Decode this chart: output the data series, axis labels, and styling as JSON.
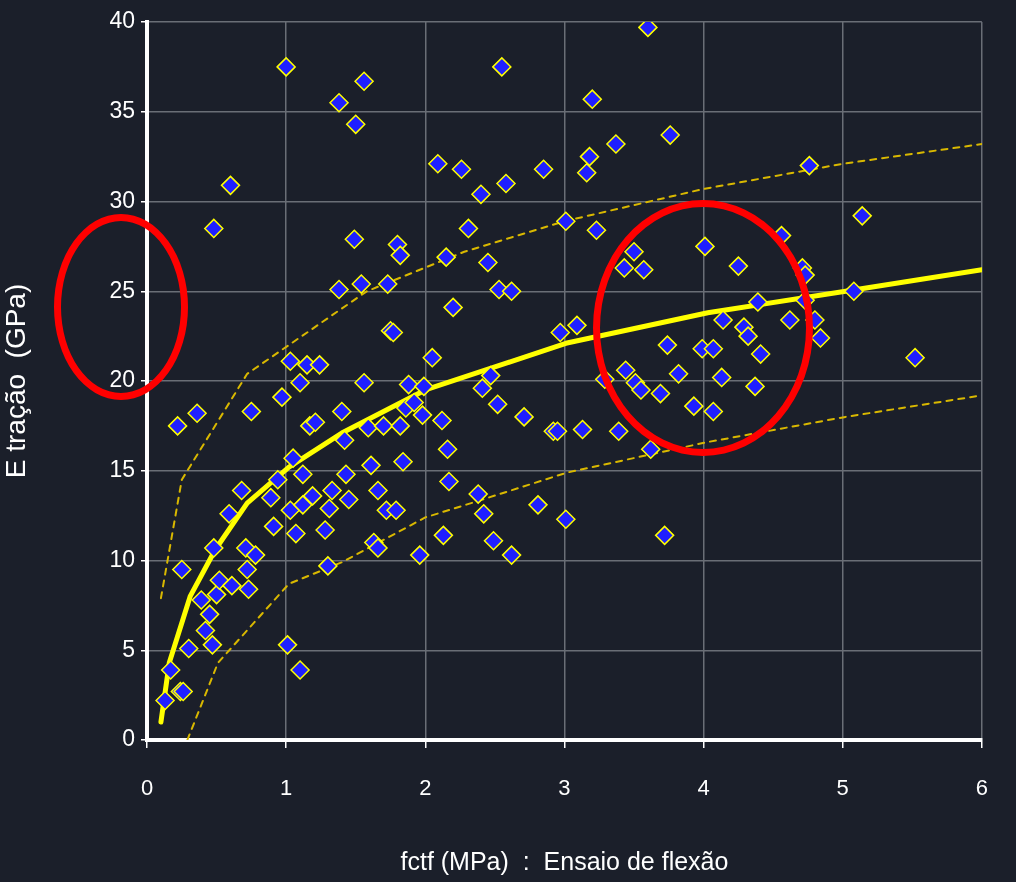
{
  "chart_data": {
    "type": "scatter",
    "xlabel": "fctf (MPa)  :  Ensaio de flexão",
    "ylabel": "E tração  (GPa)",
    "xlim": [
      0,
      6
    ],
    "ylim": [
      0,
      40
    ],
    "xticks": [
      0,
      1,
      2,
      3,
      4,
      5,
      6
    ],
    "yticks": [
      0,
      5,
      10,
      15,
      20,
      25,
      30,
      35,
      40
    ],
    "grid": true,
    "marker": "diamond",
    "series": [
      {
        "color": "#1f1fff",
        "x": [
          0.13,
          0.17,
          0.24,
          0.26,
          0.22,
          0.25,
          0.3,
          0.36,
          0.39,
          0.42,
          0.45,
          0.47,
          0.48,
          0.48,
          0.5,
          0.52,
          0.6,
          0.59,
          0.61,
          0.68,
          0.71,
          0.72,
          0.73,
          0.75,
          0.78,
          0.89,
          0.91,
          0.94,
          0.97,
          1.0,
          1.01,
          1.03,
          1.03,
          1.05,
          1.07,
          1.1,
          1.1,
          1.12,
          1.12,
          1.15,
          1.17,
          1.19,
          1.21,
          1.24,
          1.28,
          1.3,
          1.31,
          1.33,
          1.38,
          1.38,
          1.4,
          1.42,
          1.43,
          1.45,
          1.49,
          1.5,
          1.54,
          1.56,
          1.56,
          1.59,
          1.61,
          1.63,
          1.66,
          1.66,
          1.7,
          1.72,
          1.73,
          1.75,
          1.77,
          1.79,
          1.8,
          1.82,
          1.82,
          1.84,
          1.86,
          1.88,
          1.92,
          1.96,
          1.98,
          1.99,
          2.05,
          2.09,
          2.12,
          2.13,
          2.15,
          2.16,
          2.17,
          2.2,
          2.26,
          2.31,
          2.38,
          2.4,
          2.41,
          2.42,
          2.45,
          2.47,
          2.49,
          2.52,
          2.53,
          2.55,
          2.58,
          2.62,
          2.62,
          2.71,
          2.81,
          2.85,
          2.92,
          2.95,
          3.01,
          3.01,
          2.97,
          3.09,
          3.13,
          3.16,
          3.18,
          3.2,
          3.23,
          3.29,
          3.37,
          3.39,
          3.43,
          3.44,
          3.5,
          3.51,
          3.55,
          3.57,
          3.6,
          3.62,
          3.72,
          3.76,
          3.69,
          3.74,
          3.82,
          3.93,
          3.99,
          4.01,
          4.07,
          4.07,
          4.13,
          4.14,
          4.25,
          4.29,
          4.32,
          4.37,
          4.39,
          4.41,
          4.56,
          4.62,
          4.71,
          4.73,
          4.73,
          4.76,
          4.8,
          4.84,
          5.08,
          5.14,
          5.52
        ],
        "values": [
          2.2,
          3.9,
          2.7,
          2.7,
          17.5,
          9.5,
          5.1,
          18.2,
          7.8,
          6.1,
          7.0,
          5.3,
          10.7,
          28.5,
          8.1,
          8.9,
          30.9,
          12.6,
          8.6,
          13.9,
          10.7,
          9.5,
          8.4,
          18.3,
          10.3,
          13.5,
          11.9,
          14.5,
          19.1,
          37.5,
          5.3,
          21.1,
          12.8,
          15.7,
          11.5,
          19.9,
          3.9,
          14.8,
          13.1,
          20.9,
          17.5,
          13.6,
          17.7,
          20.9,
          11.7,
          9.7,
          12.9,
          13.9,
          35.5,
          25.1,
          18.3,
          16.7,
          14.8,
          13.4,
          27.9,
          34.3,
          25.4,
          36.7,
          19.9,
          17.4,
          15.3,
          11.0,
          13.9,
          10.7,
          17.5,
          12.8,
          25.4,
          22.8,
          22.7,
          12.8,
          27.6,
          27.0,
          17.5,
          15.5,
          18.5,
          19.8,
          18.8,
          10.3,
          18.1,
          19.7,
          21.3,
          32.1,
          17.8,
          11.4,
          26.9,
          16.2,
          14.4,
          24.1,
          31.8,
          28.5,
          13.7,
          30.4,
          19.6,
          12.6,
          26.6,
          20.3,
          11.1,
          18.7,
          25.1,
          37.5,
          31.0,
          25.0,
          10.3,
          18.0,
          13.1,
          31.8,
          17.2,
          17.2,
          28.9,
          12.3,
          22.7,
          23.1,
          17.3,
          31.6,
          32.5,
          35.7,
          28.4,
          20.1,
          33.2,
          17.2,
          26.3,
          20.6,
          27.2,
          19.9,
          19.5,
          26.2,
          39.7,
          16.2,
          11.4,
          33.7,
          19.3,
          22.0,
          20.4,
          18.6,
          21.8,
          27.5,
          21.8,
          18.3,
          20.2,
          23.4,
          26.4,
          23.0,
          22.5,
          19.7,
          24.4,
          21.5,
          28.1,
          23.4,
          26.3,
          25.9,
          24.5,
          32.0,
          23.4,
          22.4,
          25.0,
          29.2,
          21.3
        ]
      },
      {
        "type": "line",
        "color": "#ffff00",
        "marker": "none",
        "line_style": "solid",
        "x": [
          0.1,
          0.16,
          0.31,
          0.49,
          0.72,
          1.02,
          1.4,
          2.0,
          3.01,
          4.03,
          5.02,
          6.0
        ],
        "values": [
          1.0,
          4.3,
          8.0,
          10.6,
          13.2,
          15.2,
          17.1,
          19.5,
          22.1,
          23.8,
          25.0,
          26.2
        ]
      },
      {
        "type": "line",
        "color": "#d9b800",
        "marker": "none",
        "line_style": "dashed",
        "x": [
          0.1,
          0.25,
          0.72,
          1.58,
          2.28,
          3.0,
          4.0,
          5.0,
          6.0
        ],
        "values": [
          7.9,
          14.5,
          20.4,
          25.0,
          27.2,
          28.9,
          30.7,
          32.1,
          33.2
        ]
      },
      {
        "type": "line",
        "color": "#d9b800",
        "marker": "none",
        "line_style": "dashed",
        "x": [
          0.29,
          0.51,
          1.02,
          1.4,
          2.0,
          2.29,
          3.02,
          4.03,
          5.02,
          6.0
        ],
        "values": [
          0.0,
          4.3,
          8.7,
          9.9,
          12.4,
          13.1,
          14.9,
          16.6,
          18.0,
          19.2
        ]
      }
    ]
  }
}
